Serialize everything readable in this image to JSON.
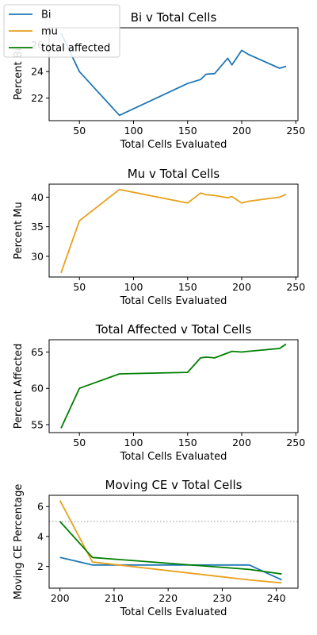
{
  "legend": {
    "entries": [
      {
        "label": "Bi",
        "color": "#1f77b4"
      },
      {
        "label": "mu",
        "color": "#e8a01b"
      },
      {
        "label": "total affected",
        "color": "#007f00"
      }
    ],
    "placement": "top-left"
  },
  "chart_data": [
    {
      "type": "line",
      "title": "Bi v Total Cells",
      "xlabel": "Total Cells Evaluated",
      "ylabel": "Percent Bi",
      "xlim": [
        22,
        252
      ],
      "ylim": [
        20.3,
        27.3
      ],
      "xticks": [
        50,
        100,
        150,
        200,
        250
      ],
      "yticks": [
        22,
        24,
        26
      ],
      "grid": false,
      "series": [
        {
          "name": "Bi",
          "color": "#1f77b4",
          "x": [
            33,
            50,
            87,
            150,
            162,
            167,
            175,
            187,
            191,
            200,
            206,
            235,
            241
          ],
          "y": [
            26.9,
            24.0,
            20.7,
            23.1,
            23.4,
            23.8,
            23.85,
            25.0,
            24.5,
            25.6,
            25.3,
            24.25,
            24.4
          ]
        }
      ]
    },
    {
      "type": "line",
      "title": "Mu v Total Cells",
      "xlabel": "Total Cells Evaluated",
      "ylabel": "Percent Mu",
      "xlim": [
        22,
        252
      ],
      "ylim": [
        26.5,
        42.2
      ],
      "xticks": [
        50,
        100,
        150,
        200,
        250
      ],
      "yticks": [
        30,
        35,
        40
      ],
      "grid": false,
      "series": [
        {
          "name": "mu",
          "color": "#e8a01b",
          "x": [
            33,
            50,
            87,
            150,
            162,
            167,
            175,
            187,
            191,
            200,
            206,
            235,
            241
          ],
          "y": [
            27.2,
            36.0,
            41.3,
            39.0,
            40.7,
            40.4,
            40.3,
            39.9,
            40.1,
            39.0,
            39.3,
            40.0,
            40.5
          ]
        }
      ]
    },
    {
      "type": "line",
      "title": "Total Affected v Total Cells",
      "xlabel": "Total Cells Evaluated",
      "ylabel": "Percent Affected",
      "xlim": [
        22,
        252
      ],
      "ylim": [
        53.9,
        66.7
      ],
      "xticks": [
        50,
        100,
        150,
        200,
        250
      ],
      "yticks": [
        55,
        60,
        65
      ],
      "grid": false,
      "series": [
        {
          "name": "total affected",
          "color": "#007f00",
          "x": [
            33,
            50,
            87,
            150,
            162,
            167,
            175,
            191,
            200,
            206,
            235,
            241
          ],
          "y": [
            54.5,
            60.0,
            62.0,
            62.2,
            64.2,
            64.3,
            64.2,
            65.1,
            65.0,
            65.1,
            65.5,
            66.1
          ]
        }
      ]
    },
    {
      "type": "line",
      "title": "Moving CE v Total Cells",
      "xlabel": "Total Cells Evaluated",
      "ylabel": "Moving CE Percentage",
      "xlim": [
        198,
        244
      ],
      "ylim": [
        0.55,
        6.75
      ],
      "xticks": [
        200,
        210,
        220,
        230,
        240
      ],
      "yticks": [
        2,
        4,
        6
      ],
      "grid": false,
      "hline": {
        "y": 5,
        "color": "#aaaaaa",
        "style": "dotted"
      },
      "series": [
        {
          "name": "Bi",
          "color": "#1f77b4",
          "x": [
            200,
            206,
            235,
            241
          ],
          "y": [
            2.6,
            2.1,
            2.1,
            1.1
          ]
        },
        {
          "name": "mu",
          "color": "#e8a01b",
          "x": [
            200,
            206,
            235,
            241
          ],
          "y": [
            6.4,
            2.3,
            1.1,
            0.9
          ]
        },
        {
          "name": "total affected",
          "color": "#007f00",
          "x": [
            200,
            206,
            235,
            241
          ],
          "y": [
            5.0,
            2.6,
            1.8,
            1.5
          ]
        }
      ]
    }
  ]
}
